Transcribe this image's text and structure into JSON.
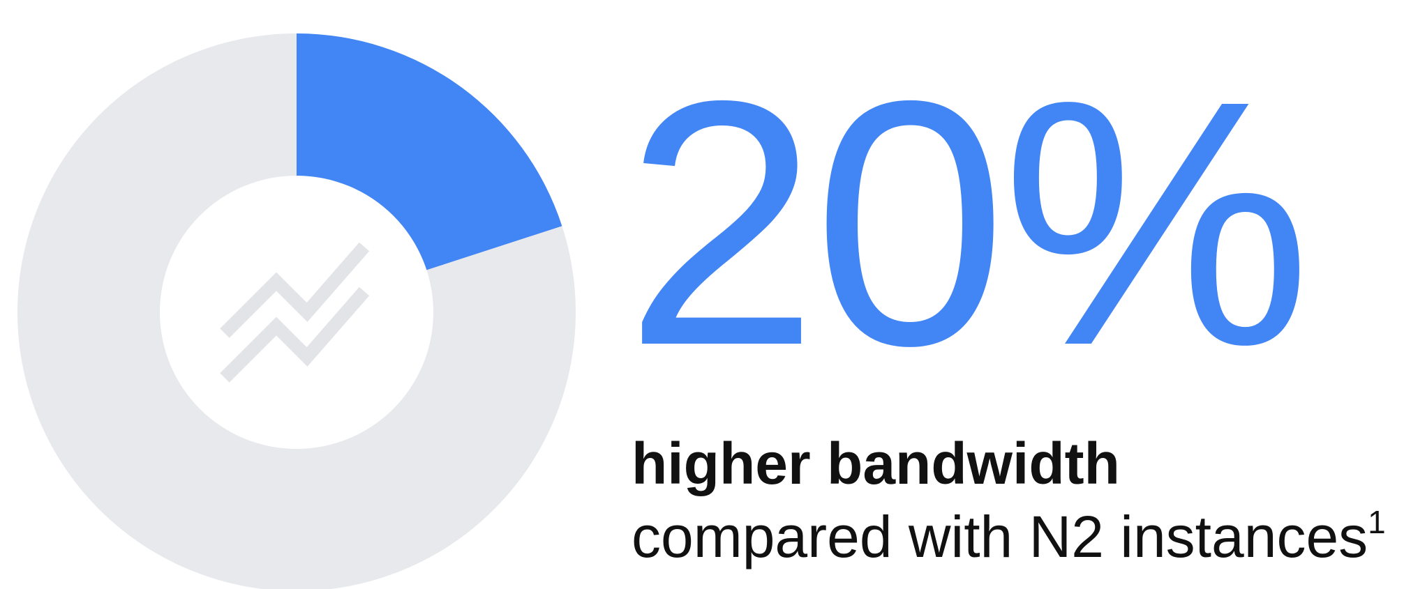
{
  "chart_data": {
    "type": "pie",
    "values": [
      20,
      80
    ],
    "colors": [
      "#4285f4",
      "#e8e9ed"
    ],
    "style": "donut"
  },
  "center_icon": "trending-up-chart-icon",
  "stat": {
    "value": "20%",
    "headline": "higher bandwidth",
    "subline": "compared with N2 instances",
    "footnote": "1"
  },
  "colors": {
    "accent": "#4285f4",
    "track": "#e8e9ed",
    "icon": "#e3e4e8",
    "text": "#111111"
  }
}
